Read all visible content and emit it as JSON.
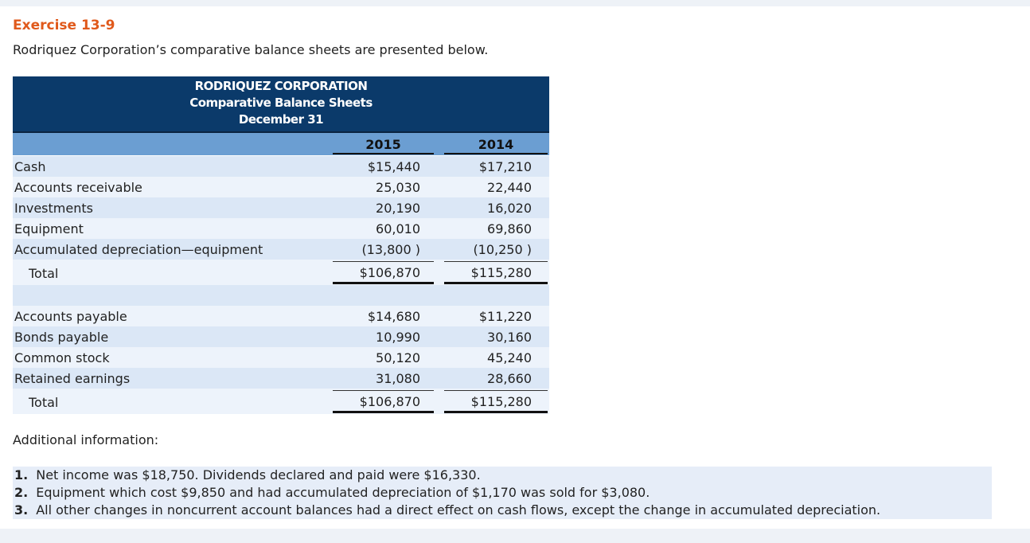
{
  "exercise_title": "Exercise 13-9",
  "intro": "Rodriquez Corporation’s comparative balance sheets are presented below.",
  "table": {
    "title_lines": [
      "RODRIQUEZ CORPORATION",
      "Comparative Balance Sheets",
      "December 31"
    ],
    "columns": [
      "2015",
      "2014"
    ],
    "sections": [
      {
        "rows": [
          [
            "Cash",
            "$15,440",
            "$17,210"
          ],
          [
            "Accounts receivable",
            "25,030",
            "22,440"
          ],
          [
            "Investments",
            "20,190",
            "16,020"
          ],
          [
            "Equipment",
            "60,010",
            "69,860"
          ],
          [
            "Accumulated depreciation—equipment",
            "(13,800 )",
            "(10,250 )"
          ]
        ],
        "total": [
          "Total",
          "$106,870",
          "$115,280"
        ]
      },
      {
        "rows": [
          [
            "Accounts payable",
            "$14,680",
            "$11,220"
          ],
          [
            "Bonds payable",
            "10,990",
            "30,160"
          ],
          [
            "Common stock",
            "50,120",
            "45,240"
          ],
          [
            "Retained earnings",
            "31,080",
            "28,660"
          ]
        ],
        "total": [
          "Total",
          "$106,870",
          "$115,280"
        ]
      }
    ]
  },
  "additional_heading": "Additional information:",
  "notes": [
    {
      "number": "1.",
      "text": "Net income was $18,750. Dividends declared and paid were $16,330."
    },
    {
      "number": "2.",
      "text": "Equipment which cost $9,850 and had accumulated depreciation of $1,170 was sold for $3,080."
    },
    {
      "number": "3.",
      "text": "All other changes in noncurrent account balances had a direct effect on cash flows, except the change in accumulated depreciation."
    }
  ]
}
